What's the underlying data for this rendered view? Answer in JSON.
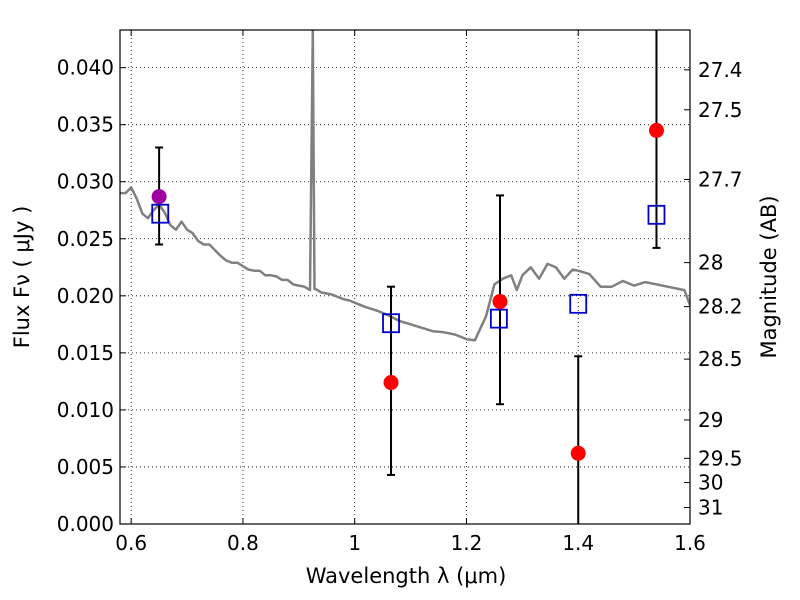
{
  "chart_data": {
    "type": "scatter",
    "xlabel": "Wavelength  λ (μm)",
    "ylabel": "Flux  Fν  ( μJy )",
    "y2label": "Magnitude (AB)",
    "xlim": [
      0.58,
      1.6
    ],
    "ylim": [
      0.0,
      0.0433
    ],
    "grid": true,
    "x_ticks": [
      0.6,
      0.8,
      1.0,
      1.2,
      1.4,
      1.6
    ],
    "x_tick_labels": [
      "0.6",
      "0.8",
      "1",
      "1.2",
      "1.4",
      "1.6"
    ],
    "y_ticks": [
      0.0,
      0.005,
      0.01,
      0.015,
      0.02,
      0.025,
      0.03,
      0.035,
      0.04
    ],
    "y_tick_labels": [
      "0.000",
      "0.005",
      "0.010",
      "0.015",
      "0.020",
      "0.025",
      "0.030",
      "0.035",
      "0.040"
    ],
    "y2_ticks": [
      27.4,
      27.5,
      27.7,
      28,
      28.2,
      28.5,
      29,
      29.5,
      30,
      31
    ],
    "y2_tick_labels": [
      "27.4",
      "27.5",
      "27.7",
      "28",
      "28.2",
      "28.5",
      "29",
      "29.5",
      "30",
      "31"
    ],
    "colors": {
      "spectrum": "#808080",
      "observed": "#ff0000",
      "magenta_point": "#a000a0",
      "model": "#0000cc",
      "errorbar": "#000000"
    },
    "spectrum": {
      "x": [
        0.58,
        0.59,
        0.6,
        0.61,
        0.62,
        0.63,
        0.64,
        0.65,
        0.66,
        0.67,
        0.68,
        0.69,
        0.7,
        0.71,
        0.72,
        0.73,
        0.74,
        0.75,
        0.76,
        0.77,
        0.78,
        0.79,
        0.8,
        0.81,
        0.82,
        0.83,
        0.84,
        0.85,
        0.86,
        0.87,
        0.88,
        0.89,
        0.9,
        0.91,
        0.92,
        0.925,
        0.928,
        0.93,
        0.94,
        0.95,
        0.96,
        0.97,
        0.98,
        0.99,
        1.0,
        1.02,
        1.04,
        1.06,
        1.08,
        1.1,
        1.12,
        1.14,
        1.16,
        1.18,
        1.2,
        1.215,
        1.235,
        1.25,
        1.265,
        1.28,
        1.29,
        1.3,
        1.315,
        1.33,
        1.345,
        1.36,
        1.375,
        1.39,
        1.4,
        1.42,
        1.44,
        1.46,
        1.48,
        1.5,
        1.52,
        1.54,
        1.56,
        1.58,
        1.59,
        1.6
      ],
      "y": [
        0.029,
        0.029,
        0.0295,
        0.0285,
        0.0272,
        0.0268,
        0.0275,
        0.028,
        0.0273,
        0.0262,
        0.0258,
        0.0265,
        0.0258,
        0.0255,
        0.0248,
        0.0245,
        0.0245,
        0.024,
        0.0235,
        0.0231,
        0.0229,
        0.0229,
        0.0226,
        0.0223,
        0.0222,
        0.0222,
        0.0218,
        0.0218,
        0.0217,
        0.0214,
        0.0214,
        0.021,
        0.0209,
        0.0208,
        0.0205,
        0.0433,
        0.0206,
        0.0206,
        0.0203,
        0.0202,
        0.0201,
        0.0199,
        0.0197,
        0.0196,
        0.0194,
        0.019,
        0.0187,
        0.0183,
        0.0178,
        0.0175,
        0.0172,
        0.0169,
        0.0168,
        0.0166,
        0.0162,
        0.0161,
        0.0182,
        0.021,
        0.0215,
        0.0218,
        0.0205,
        0.0218,
        0.0225,
        0.0215,
        0.0228,
        0.0225,
        0.0215,
        0.0223,
        0.0222,
        0.0219,
        0.0208,
        0.0208,
        0.0213,
        0.0209,
        0.0212,
        0.021,
        0.0208,
        0.0206,
        0.0205,
        0.0192
      ]
    },
    "observed_points": [
      {
        "x": 1.065,
        "y": 0.0124,
        "yerr_low": 0.0043,
        "yerr_high": 0.0208,
        "color": "red"
      },
      {
        "x": 1.26,
        "y": 0.0195,
        "yerr_low": 0.0105,
        "yerr_high": 0.0288,
        "color": "red"
      },
      {
        "x": 1.4,
        "y": 0.0062,
        "yerr_low": 0.0,
        "yerr_high": 0.0147,
        "color": "red"
      },
      {
        "x": 1.54,
        "y": 0.0345,
        "yerr_low": 0.0242,
        "yerr_high": 0.0433,
        "color": "red"
      },
      {
        "x": 0.65,
        "y": 0.0287,
        "yerr_low": 0.0245,
        "yerr_high": 0.033,
        "color": "magenta"
      }
    ],
    "model_points": [
      {
        "x": 0.652,
        "y": 0.0272
      },
      {
        "x": 1.065,
        "y": 0.0176
      },
      {
        "x": 1.258,
        "y": 0.018
      },
      {
        "x": 1.4,
        "y": 0.0193
      },
      {
        "x": 1.54,
        "y": 0.0271
      }
    ]
  }
}
